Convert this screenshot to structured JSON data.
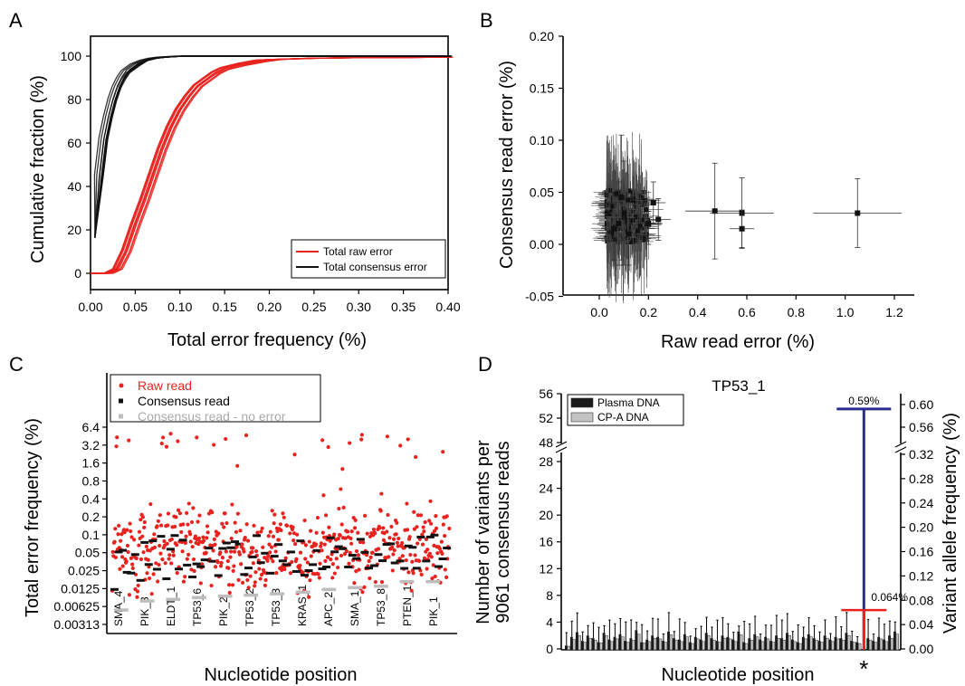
{
  "chart_data": [
    {
      "panel": "A",
      "type": "line",
      "xlabel": "Total error frequency (%)",
      "ylabel": "Cumulative fraction (%)",
      "xlim": [
        0,
        0.4
      ],
      "ylim": [
        0,
        100
      ],
      "xticks": [
        "0.00",
        "0.05",
        "0.10",
        "0.15",
        "0.20",
        "0.25",
        "0.30",
        "0.35",
        "0.40"
      ],
      "yticks": [
        "0",
        "20",
        "40",
        "60",
        "80",
        "100"
      ],
      "legend": {
        "position": "bottom-right",
        "entries": [
          "Total raw error",
          "Total consensus error"
        ]
      },
      "series": [
        {
          "name": "Total raw error",
          "color": "#e8231f",
          "x": [
            0,
            0.02,
            0.03,
            0.04,
            0.05,
            0.06,
            0.07,
            0.08,
            0.09,
            0.1,
            0.11,
            0.12,
            0.13,
            0.14,
            0.15,
            0.17,
            0.19,
            0.21,
            0.25,
            0.3,
            0.4
          ],
          "y": [
            0,
            0,
            2,
            10,
            22,
            33,
            45,
            57,
            67,
            75,
            81,
            86,
            89,
            92,
            94,
            96,
            97.5,
            98.5,
            99,
            99.3,
            99.5
          ]
        },
        {
          "name": "Total consensus error",
          "color": "#111111",
          "x": [
            0.005,
            0.01,
            0.015,
            0.02,
            0.025,
            0.03,
            0.035,
            0.04,
            0.05,
            0.06,
            0.07,
            0.08,
            0.1,
            0.15,
            0.4
          ],
          "y": [
            17,
            45,
            62,
            72,
            80,
            86,
            90,
            93,
            96,
            98,
            99,
            99.5,
            100,
            100,
            100
          ]
        }
      ]
    },
    {
      "panel": "B",
      "type": "scatter",
      "xlabel": "Raw read error (%)",
      "ylabel": "Consensus read error (%)",
      "xlim": [
        -0.1,
        1.3
      ],
      "ylim": [
        -0.05,
        0.2
      ],
      "xticks": [
        "0.0",
        "0.2",
        "0.4",
        "0.6",
        "0.8",
        "1.0",
        "1.2"
      ],
      "yticks": [
        "-0.05",
        "0.00",
        "0.05",
        "0.10",
        "0.15",
        "0.20"
      ],
      "points": [
        {
          "x": 0.47,
          "y": 0.032,
          "xerr": 0.12,
          "yerr": 0.046
        },
        {
          "x": 0.58,
          "y": 0.03,
          "xerr": 0.13,
          "yerr": 0.034
        },
        {
          "x": 0.58,
          "y": 0.015,
          "xerr": 0.05,
          "yerr": 0.018
        },
        {
          "x": 1.05,
          "y": 0.03,
          "xerr": 0.18,
          "yerr": 0.033
        },
        {
          "x": 0.22,
          "y": 0.04,
          "xerr": 0.05,
          "yerr": 0.02
        },
        {
          "x": 0.24,
          "y": 0.024,
          "xerr": 0.05,
          "yerr": 0.02
        },
        {
          "x": 0.2,
          "y": 0.02,
          "xerr": 0.05,
          "yerr": 0.02
        },
        {
          "x": 0.1,
          "y": 0.03,
          "xerr": 0.06,
          "yerr": 0.05
        },
        {
          "x": 0.08,
          "y": 0.02,
          "xerr": 0.05,
          "yerr": 0.04
        },
        {
          "x": 0.12,
          "y": 0.01,
          "xerr": 0.05,
          "yerr": 0.03
        },
        {
          "x": 0.06,
          "y": 0.015,
          "xerr": 0.04,
          "yerr": 0.03
        },
        {
          "x": 0.09,
          "y": 0.045,
          "xerr": 0.05,
          "yerr": 0.06
        }
      ]
    },
    {
      "panel": "C",
      "type": "scatter",
      "xlabel": "Nucleotide position",
      "ylabel": "Total error frequency (%)",
      "yscale": "log2",
      "ylim": [
        0.0025,
        8
      ],
      "yticks": [
        "0.00313",
        "0.00625",
        "0.0125",
        "0.025",
        "0.05",
        "0.1",
        "0.2",
        "0.4",
        "0.8",
        "1.6",
        "3.2",
        "6.4"
      ],
      "categories": [
        "SMA_4",
        "PIK_3",
        "ELDT_1",
        "TP53_6",
        "PIK_2",
        "TP53_2",
        "TP53_3",
        "KRAS_1",
        "APC_2",
        "SMA_1",
        "TP53_8",
        "PTEN_1",
        "PIK_1"
      ],
      "legend": {
        "position": "top-left",
        "entries": [
          "Raw read",
          "Consensus read",
          "Consensus read - no error"
        ]
      },
      "series": [
        {
          "name": "Raw read",
          "color": "#e8231f",
          "values": [
            0.05,
            0.06,
            0.07,
            0.06,
            0.06,
            0.06,
            0.07,
            0.05,
            0.07,
            0.07,
            0.07,
            0.06,
            0.07
          ]
        },
        {
          "name": "Consensus read",
          "color": "#111111",
          "values": [
            0.04,
            0.05,
            0.05,
            0.05,
            0.045,
            0.05,
            0.05,
            0.04,
            0.05,
            0.05,
            0.05,
            0.05,
            0.05
          ]
        },
        {
          "name": "Consensus read - no error",
          "color": "#bdbdbd",
          "values": [
            0.0055,
            0.0078,
            0.0083,
            0.0089,
            0.0094,
            0.0098,
            0.0103,
            0.011,
            0.0122,
            0.0131,
            0.0138,
            0.0165,
            0.0165
          ]
        }
      ]
    },
    {
      "panel": "D",
      "type": "bar",
      "title": "TP53_1",
      "xlabel": "Nucleotide position",
      "ylabel": "Number of variants per\n9061 consensus reads",
      "y2label": "Variant allele frequency (%)",
      "yticks_low": [
        "0",
        "4",
        "8",
        "12",
        "16",
        "20",
        "24",
        "28"
      ],
      "yticks_high": [
        "48",
        "52",
        "56"
      ],
      "y2ticks_low": [
        "0.00",
        "0.04",
        "0.08",
        "0.12",
        "0.16",
        "0.20",
        "0.24",
        "0.28",
        "0.32"
      ],
      "y2ticks_high": [
        "0.56",
        "0.60"
      ],
      "legend": {
        "position": "top-left",
        "entries": [
          "Plasma DNA",
          "CP-A DNA"
        ]
      },
      "annotations": [
        "0.59%",
        "0.064%",
        "*"
      ],
      "highlight": {
        "plasma_value": 53.5,
        "cpa_value": 5.8,
        "plasma_label": "0.59%",
        "cpa_label": "0.064%"
      },
      "series": [
        {
          "name": "Plasma DNA",
          "color": "#1a1a1a",
          "values": [
            0.5,
            1.8,
            2.5,
            1.2,
            2.0,
            1.6,
            1.0,
            2.4,
            1.4,
            1.8,
            2.2,
            1.2,
            1.6,
            2.8,
            1.0,
            1.4,
            2.0,
            1.8,
            1.2,
            2.6,
            1.6,
            1.4,
            2.2,
            1.0,
            1.8,
            1.4,
            2.4,
            1.6,
            1.2,
            2.0,
            1.8,
            1.4,
            2.6,
            1.0,
            1.6,
            2.2,
            1.4,
            1.8,
            1.2,
            2.0,
            1.6,
            2.4,
            1.4,
            1.0,
            1.8,
            2.2,
            1.6,
            1.2,
            2.0,
            1.4,
            1.8,
            1.6,
            2.4,
            1.2,
            1.0,
            53.5,
            1.6,
            1.2,
            1.8,
            1.4,
            2.0,
            2.6
          ]
        },
        {
          "name": "CP-A DNA",
          "color": "#c4c4c4",
          "values": [
            0.4,
            1.4,
            2.0,
            1.0,
            1.6,
            1.3,
            0.9,
            2.0,
            1.1,
            1.5,
            1.8,
            1.0,
            1.3,
            2.2,
            0.9,
            1.1,
            1.6,
            1.5,
            1.0,
            2.1,
            1.3,
            1.1,
            1.8,
            0.8,
            1.5,
            1.1,
            2.0,
            1.3,
            1.0,
            1.6,
            1.5,
            1.1,
            2.1,
            0.8,
            1.3,
            1.8,
            1.1,
            1.5,
            1.0,
            1.6,
            1.3,
            2.0,
            1.1,
            0.8,
            1.5,
            1.8,
            1.3,
            1.0,
            1.6,
            1.1,
            1.5,
            1.3,
            2.0,
            1.0,
            0.8,
            5.8,
            1.3,
            1.0,
            1.5,
            1.1,
            1.6,
            2.2
          ]
        }
      ]
    }
  ]
}
